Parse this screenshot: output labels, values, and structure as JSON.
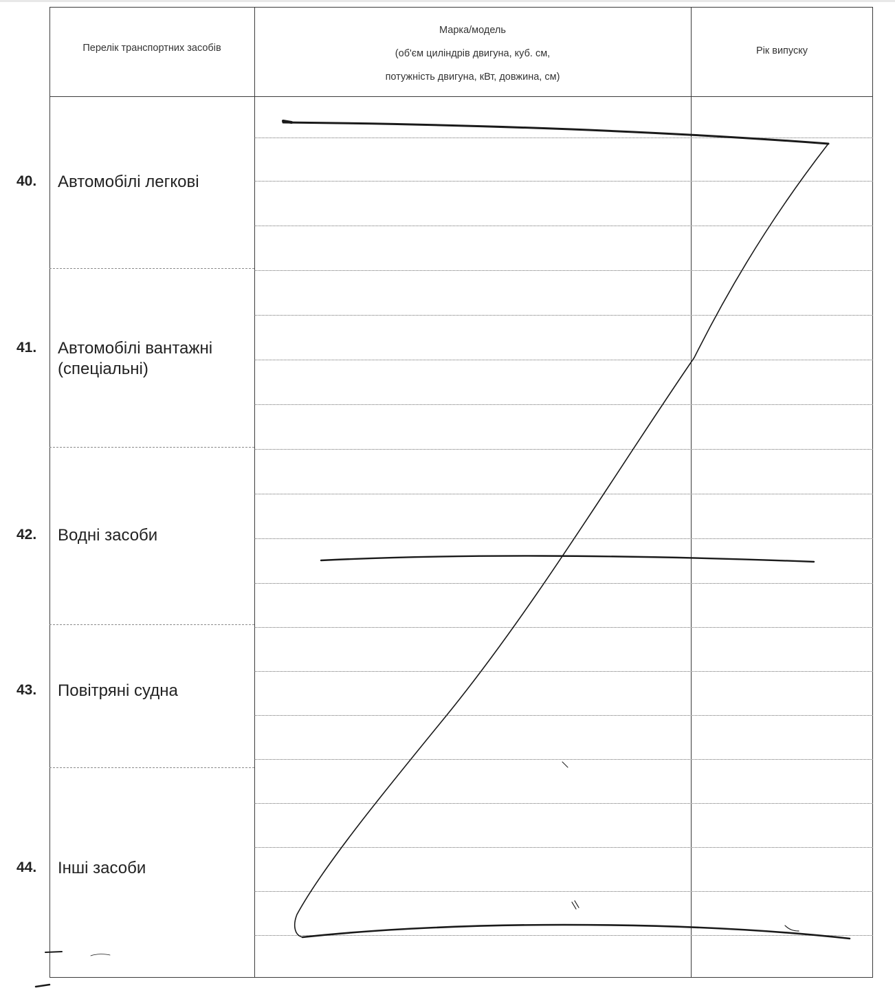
{
  "table": {
    "headers": {
      "vehicles_list": "Перелік транспортних засобів",
      "make_model": {
        "line1": "Марка/модель",
        "line2": "(об'єм циліндрів двигуна, куб. см,",
        "line3": "потужність двигуна, кВт, довжина, см)"
      },
      "year": "Рік випуску"
    },
    "rows": [
      {
        "number": "40.",
        "label_lines": [
          "Автомобілі легкові"
        ]
      },
      {
        "number": "41.",
        "label_lines": [
          "Автомобілі вантажні",
          "(спеціальні)"
        ]
      },
      {
        "number": "42.",
        "label_lines": [
          "Водні засоби"
        ]
      },
      {
        "number": "43.",
        "label_lines": [
          "Повітряні судна"
        ]
      },
      {
        "number": "44.",
        "label_lines": [
          "Інші засоби"
        ]
      }
    ]
  },
  "colors": {
    "ink": "#1a1a1a",
    "grid": "#3a3a3a"
  }
}
